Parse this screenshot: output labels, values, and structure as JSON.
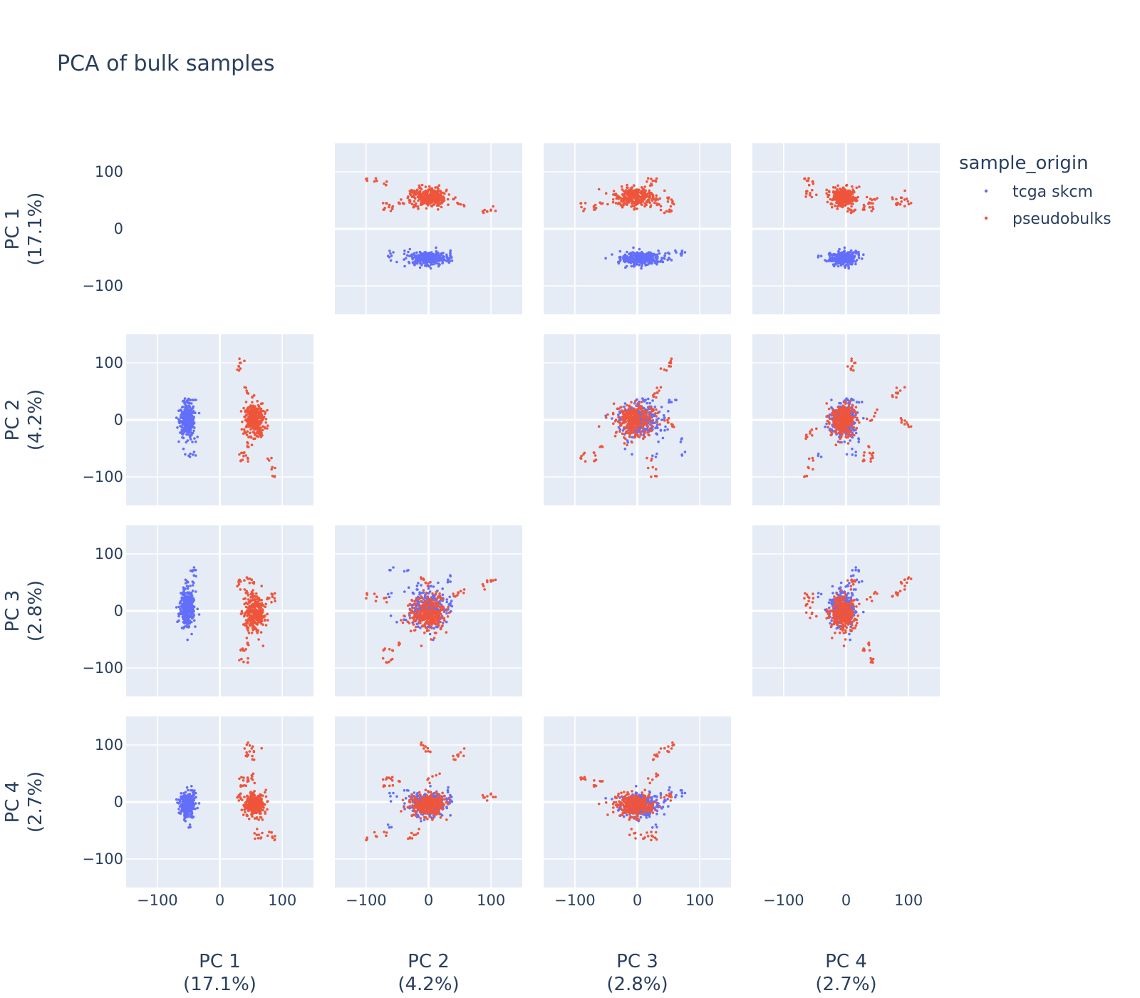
{
  "chart_data": {
    "type": "scatter",
    "title": "PCA of bulk samples",
    "legend": {
      "title": "sample_origin",
      "placement": "top-right",
      "entries": [
        {
          "name": "tcga skcm",
          "color": "#636efa"
        },
        {
          "name": "pseudobulks",
          "color": "#ef553b"
        }
      ]
    },
    "dimensions": [
      {
        "label": "PC 1",
        "variance": "(17.1%)"
      },
      {
        "label": "PC 2",
        "variance": "(4.2%)"
      },
      {
        "label": "PC 3",
        "variance": "(2.8%)"
      },
      {
        "label": "PC 4",
        "variance": "(2.7%)"
      }
    ],
    "axis_range": [
      -150,
      150
    ],
    "tick_values": [
      -100,
      0,
      100
    ],
    "tick_labels": [
      "−100",
      "0",
      "100"
    ],
    "grid": true,
    "plot_background": "#e5ecf6",
    "diagonal_visible": false,
    "series": [
      {
        "name": "tcga skcm",
        "color": "#636efa",
        "clusters": [
          {
            "center": [
              -52,
              0,
              5,
              -5
            ],
            "spread": [
              6,
              15,
              16,
              10
            ],
            "points": 330
          }
        ],
        "outliers": [
          [
            -45,
            -35,
            70,
            20
          ],
          [
            -40,
            -60,
            75,
            15
          ],
          [
            -47,
            -65,
            30,
            -45
          ],
          [
            -42,
            35,
            60,
            10
          ],
          [
            -55,
            30,
            50,
            20
          ],
          [
            -48,
            -15,
            45,
            5
          ]
        ]
      },
      {
        "name": "pseudobulks",
        "color": "#ef553b",
        "clusters": [
          {
            "center": [
              55,
              0,
              -5,
              -5
            ],
            "spread": [
              8,
              14,
              15,
              10
            ],
            "points": 280
          }
        ],
        "outliers": [
          [
            35,
            100,
            55,
            5
          ],
          [
            30,
            95,
            50,
            10
          ],
          [
            32,
            90,
            45,
            8
          ],
          [
            90,
            -100,
            30,
            -65
          ],
          [
            85,
            -85,
            25,
            -60
          ],
          [
            80,
            -70,
            20,
            -55
          ],
          [
            40,
            55,
            35,
            85
          ],
          [
            45,
            45,
            30,
            80
          ],
          [
            50,
            40,
            25,
            75
          ],
          [
            45,
            -10,
            58,
            100
          ],
          [
            52,
            -5,
            50,
            95
          ],
          [
            58,
            0,
            45,
            90
          ],
          [
            40,
            -60,
            -70,
            30
          ],
          [
            45,
            -50,
            -60,
            35
          ],
          [
            35,
            -70,
            -65,
            28
          ],
          [
            45,
            -70,
            -90,
            40
          ],
          [
            38,
            -60,
            -85,
            45
          ],
          [
            60,
            -30,
            10,
            -65
          ],
          [
            65,
            -25,
            0,
            -60
          ],
          [
            55,
            -20,
            -5,
            -55
          ],
          [
            50,
            0,
            20,
            40
          ],
          [
            55,
            10,
            30,
            45
          ]
        ]
      }
    ]
  }
}
